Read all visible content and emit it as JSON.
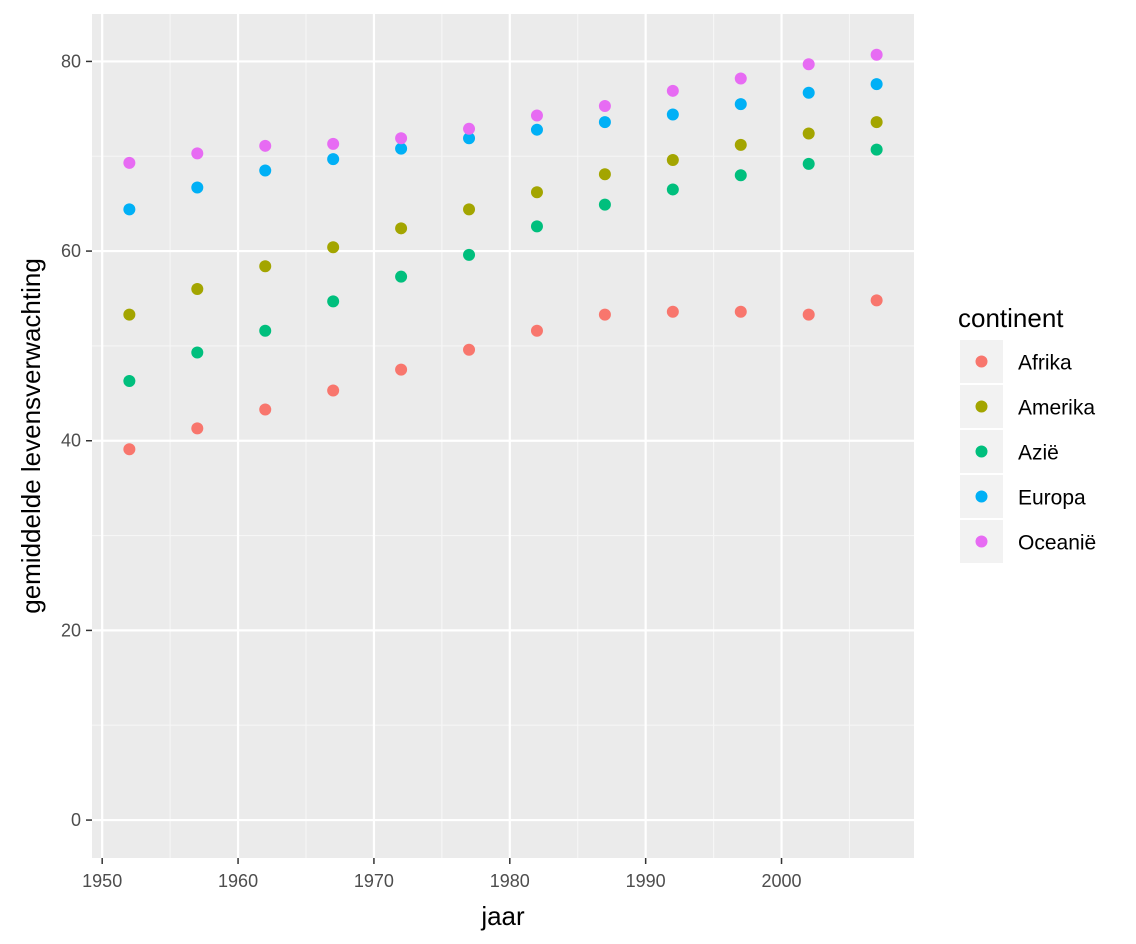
{
  "chart_data": {
    "type": "scatter",
    "title": "",
    "xlabel": "jaar",
    "ylabel": "gemiddelde levensverwachting",
    "xlim": [
      1949.25,
      2009.75
    ],
    "ylim": [
      -4,
      85
    ],
    "x_ticks": [
      1950,
      1960,
      1970,
      1980,
      1990,
      2000
    ],
    "y_ticks": [
      0,
      20,
      40,
      60,
      80
    ],
    "x_tick_labels": [
      "1950",
      "1960",
      "1970",
      "1980",
      "1990",
      "2000"
    ],
    "y_tick_labels": [
      "0",
      "20",
      "40",
      "60",
      "80"
    ],
    "grid": true,
    "background": "#ebebeb",
    "legend_title": "continent",
    "legend_position": "right",
    "x": [
      1952,
      1957,
      1962,
      1967,
      1972,
      1977,
      1982,
      1987,
      1992,
      1997,
      2002,
      2007
    ],
    "series": [
      {
        "name": "Afrika",
        "color": "#F8766D",
        "values": [
          39.1,
          41.3,
          43.3,
          45.3,
          47.5,
          49.6,
          51.6,
          53.3,
          53.6,
          53.6,
          53.3,
          54.8
        ]
      },
      {
        "name": "Amerika",
        "color": "#A3A500",
        "values": [
          53.3,
          56.0,
          58.4,
          60.4,
          62.4,
          64.4,
          66.2,
          68.1,
          69.6,
          71.2,
          72.4,
          73.6
        ]
      },
      {
        "name": "Azië",
        "color": "#00BF7D",
        "values": [
          46.3,
          49.3,
          51.6,
          54.7,
          57.3,
          59.6,
          62.6,
          64.9,
          66.5,
          68.0,
          69.2,
          70.7
        ]
      },
      {
        "name": "Europa",
        "color": "#00B0F6",
        "values": [
          64.4,
          66.7,
          68.5,
          69.7,
          70.8,
          71.9,
          72.8,
          73.6,
          74.4,
          75.5,
          76.7,
          77.6
        ]
      },
      {
        "name": "Oceanië",
        "color": "#E76BF3",
        "values": [
          69.3,
          70.3,
          71.1,
          71.3,
          71.9,
          72.9,
          74.3,
          75.3,
          76.9,
          78.2,
          79.7,
          80.7
        ]
      }
    ]
  }
}
